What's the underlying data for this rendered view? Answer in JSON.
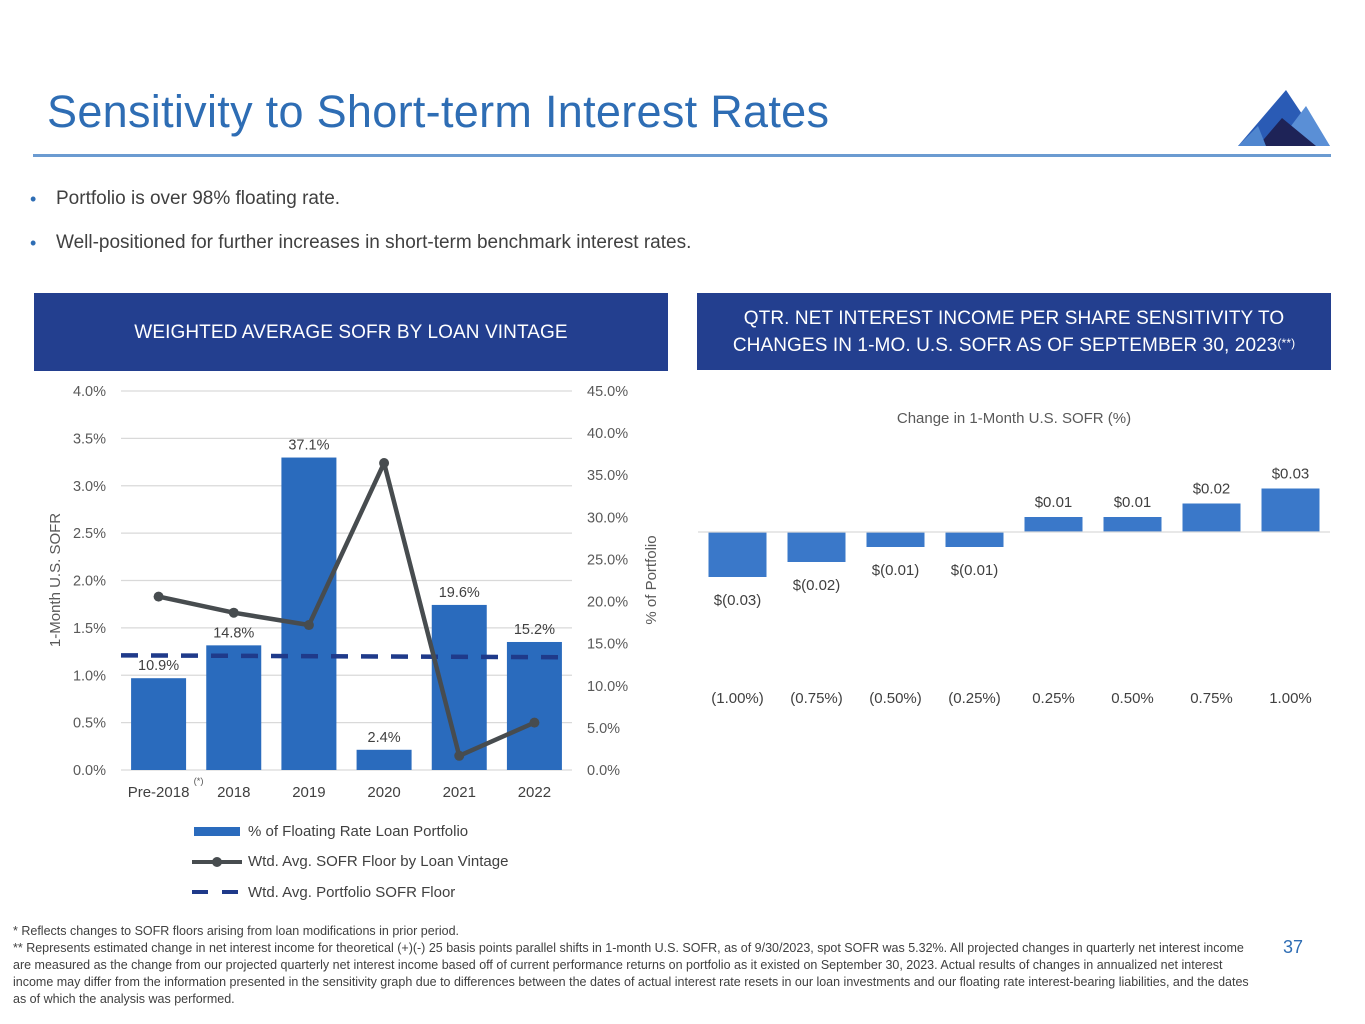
{
  "page": {
    "title": "Sensitivity to Short-term Interest Rates",
    "page_number": "37",
    "logo_icon": "mountain-logo-icon",
    "colors": {
      "title_blue": "#2e6db4",
      "header_navy": "#233f8f",
      "bar_blue": "#2a6bbd",
      "bar_blue_right": "#3a78c9",
      "line_gray": "#474c4f",
      "dash_navy": "#1f3a8a"
    }
  },
  "bullets": [
    "Portfolio is over 98% floating rate.",
    "Well-positioned for further increases in short-term benchmark interest rates."
  ],
  "left_panel": {
    "header": "WEIGHTED AVERAGE SOFR BY LOAN VINTAGE",
    "footnote_marker": "(*)"
  },
  "right_panel": {
    "header_line1": "QTR. NET INTEREST INCOME PER SHARE SENSITIVITY TO",
    "header_line2": "CHANGES IN 1-MO. U.S. SOFR AS OF SEPTEMBER 30, 2023",
    "header_sup": "(**)"
  },
  "legend": [
    {
      "label": "% of Floating Rate Loan Portfolio",
      "type": "bar"
    },
    {
      "label": "Wtd. Avg. SOFR Floor by Loan Vintage",
      "type": "line-marker"
    },
    {
      "label": "Wtd. Avg. Portfolio SOFR Floor",
      "type": "dashed"
    }
  ],
  "footnotes": [
    "* Reflects changes to SOFR floors arising from loan modifications in prior period.",
    "** Represents estimated change in net interest income for theoretical (+)(-) 25 basis points parallel shifts in 1-month U.S. SOFR, as of 9/30/2023, spot SOFR was 5.32%.  All projected changes in quarterly net interest income are measured as the change from our projected quarterly net interest income based off of current performance returns on portfolio as it existed on September 30, 2023. Actual results of changes in annualized net interest income may differ from the information presented in the sensitivity graph due to differences between the dates of actual interest rate resets in our loan investments and our floating rate interest-bearing liabilities, and the dates as of which the analysis was performed."
  ],
  "chart_data": [
    {
      "type": "bar",
      "title": "WEIGHTED AVERAGE SOFR BY LOAN VINTAGE",
      "categories": [
        "Pre-2018",
        "2018",
        "2019",
        "2020",
        "2021",
        "2022"
      ],
      "ylabel": "1-Month U.S. SOFR",
      "y2label": "% of Portfolio",
      "ylim": [
        0,
        4.0
      ],
      "y2lim": [
        0,
        45.0
      ],
      "yticks": [
        "0.0%",
        "0.5%",
        "1.0%",
        "1.5%",
        "2.0%",
        "2.5%",
        "3.0%",
        "3.5%",
        "4.0%"
      ],
      "y2ticks": [
        "0.0%",
        "5.0%",
        "10.0%",
        "15.0%",
        "20.0%",
        "25.0%",
        "30.0%",
        "35.0%",
        "40.0%",
        "45.0%"
      ],
      "grid": true,
      "legend_position": "bottom",
      "series": [
        {
          "name": "% of Floating Rate Loan Portfolio",
          "type": "bar",
          "axis": "right",
          "values": [
            10.9,
            14.8,
            37.1,
            2.4,
            19.6,
            15.2
          ],
          "labels": [
            "10.9%",
            "14.8%",
            "37.1%",
            "2.4%",
            "19.6%",
            "15.2%"
          ]
        },
        {
          "name": "Wtd. Avg. SOFR Floor by Loan Vintage",
          "type": "line",
          "axis": "left",
          "values": [
            1.83,
            1.66,
            1.53,
            3.24,
            0.15,
            0.5
          ]
        },
        {
          "name": "Wtd. Avg. Portfolio SOFR Floor",
          "type": "dashed-line",
          "axis": "left",
          "values": [
            1.21,
            1.19
          ]
        }
      ]
    },
    {
      "type": "bar",
      "title": "Change in 1-Month U.S. SOFR (%)",
      "categories": [
        "(1.00%)",
        "(0.75%)",
        "(0.50%)",
        "(0.25%)",
        "0.25%",
        "0.50%",
        "0.75%",
        "1.00%"
      ],
      "values": [
        -0.03,
        -0.02,
        -0.01,
        -0.01,
        0.01,
        0.01,
        0.019,
        0.029
      ],
      "labels": [
        "$(0.03)",
        "$(0.02)",
        "$(0.01)",
        "$(0.01)",
        "$0.01",
        "$0.01",
        "$0.02",
        "$0.03"
      ],
      "xlabel": "",
      "ylabel": "",
      "ylim": [
        -0.03,
        0.03
      ],
      "grid": false
    }
  ]
}
